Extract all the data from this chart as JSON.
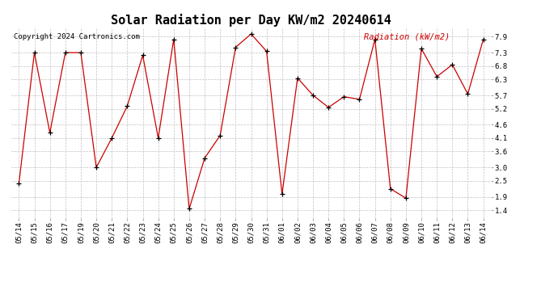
{
  "title": "Solar Radiation per Day KW/m2 20240614",
  "copyright": "Copyright 2024 Cartronics.com",
  "legend_label": "Radiation (kW/m2)",
  "background_color": "#ffffff",
  "line_color": "#cc0000",
  "marker_color": "#000000",
  "grid_color": "#c0c0c0",
  "title_color": "#000000",
  "copyright_color": "#000000",
  "legend_color": "#cc0000",
  "dates": [
    "05/14",
    "05/15",
    "05/16",
    "05/17",
    "05/19",
    "05/20",
    "05/21",
    "05/22",
    "05/23",
    "05/24",
    "05/25",
    "05/26",
    "05/27",
    "05/28",
    "05/29",
    "05/30",
    "05/31",
    "06/01",
    "06/02",
    "06/03",
    "06/04",
    "06/05",
    "06/06",
    "06/07",
    "06/08",
    "06/09",
    "06/10",
    "06/11",
    "06/12",
    "06/13",
    "06/14"
  ],
  "values": [
    2.4,
    7.3,
    4.3,
    7.3,
    7.3,
    3.0,
    4.1,
    5.3,
    7.2,
    4.1,
    7.8,
    1.45,
    3.35,
    4.2,
    7.5,
    8.0,
    7.35,
    2.0,
    6.35,
    5.7,
    5.25,
    5.65,
    5.55,
    7.8,
    2.2,
    1.85,
    7.45,
    6.4,
    6.85,
    5.75,
    7.8
  ],
  "ylim": [
    1.1,
    8.25
  ],
  "yticks": [
    1.4,
    1.9,
    2.5,
    3.0,
    3.6,
    4.1,
    4.6,
    5.2,
    5.7,
    6.3,
    6.8,
    7.3,
    7.9
  ],
  "title_fontsize": 11,
  "tick_fontsize": 6.5,
  "legend_fontsize": 7.5,
  "copyright_fontsize": 6.5
}
